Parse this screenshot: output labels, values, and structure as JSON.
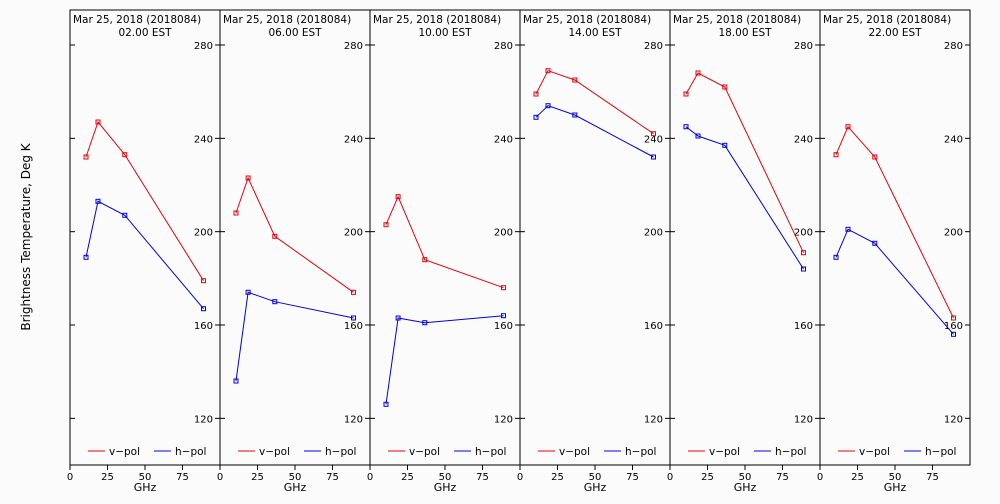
{
  "ylabel": "Brightness Temperature, Deg K",
  "legend": {
    "v_label": "v−pol",
    "h_label": "h−pol"
  },
  "colors": {
    "v": "#e8000b",
    "h": "#0000e0",
    "axis": "#000000",
    "background": "#fbfbfb"
  },
  "chart_data": [
    {
      "type": "line",
      "title": "Mar 25, 2018 (2018084)",
      "subtitle": "02.00 EST",
      "xlabel": "GHz",
      "xlim": [
        0,
        100
      ],
      "ylim": [
        100,
        295
      ],
      "xticks": [
        0,
        25,
        50,
        75
      ],
      "yticks": [
        120,
        160,
        200,
        240,
        280
      ],
      "x": [
        10.65,
        18.7,
        36.5,
        89.0
      ],
      "series": [
        {
          "name": "v−pol",
          "values": [
            232,
            247,
            233,
            179
          ]
        },
        {
          "name": "h−pol",
          "values": [
            189,
            213,
            207,
            167
          ]
        }
      ]
    },
    {
      "type": "line",
      "title": "Mar 25, 2018 (2018084)",
      "subtitle": "06.00 EST",
      "xlabel": "GHz",
      "xlim": [
        0,
        100
      ],
      "ylim": [
        100,
        295
      ],
      "xticks": [
        0,
        25,
        50,
        75
      ],
      "yticks": [
        120,
        160,
        200,
        240,
        280
      ],
      "x": [
        10.65,
        18.7,
        36.5,
        89.0
      ],
      "series": [
        {
          "name": "v−pol",
          "values": [
            208,
            223,
            198,
            174
          ]
        },
        {
          "name": "h−pol",
          "values": [
            136,
            174,
            170,
            163
          ]
        }
      ]
    },
    {
      "type": "line",
      "title": "Mar 25, 2018 (2018084)",
      "subtitle": "10.00 EST",
      "xlabel": "GHz",
      "xlim": [
        0,
        100
      ],
      "ylim": [
        100,
        295
      ],
      "xticks": [
        0,
        25,
        50,
        75
      ],
      "yticks": [
        120,
        160,
        200,
        240,
        280
      ],
      "x": [
        10.65,
        18.7,
        36.5,
        89.0
      ],
      "series": [
        {
          "name": "v−pol",
          "values": [
            203,
            215,
            188,
            176
          ]
        },
        {
          "name": "h−pol",
          "values": [
            126,
            163,
            161,
            164
          ]
        }
      ]
    },
    {
      "type": "line",
      "title": "Mar 25, 2018 (2018084)",
      "subtitle": "14.00 EST",
      "xlabel": "GHz",
      "xlim": [
        0,
        100
      ],
      "ylim": [
        100,
        295
      ],
      "xticks": [
        0,
        25,
        50,
        75
      ],
      "yticks": [
        120,
        160,
        200,
        240,
        280
      ],
      "x": [
        10.65,
        18.7,
        36.5,
        89.0
      ],
      "series": [
        {
          "name": "v−pol",
          "values": [
            259,
            269,
            265,
            242
          ]
        },
        {
          "name": "h−pol",
          "values": [
            249,
            254,
            250,
            232
          ]
        }
      ]
    },
    {
      "type": "line",
      "title": "Mar 25, 2018 (2018084)",
      "subtitle": "18.00 EST",
      "xlabel": "GHz",
      "xlim": [
        0,
        100
      ],
      "ylim": [
        100,
        295
      ],
      "xticks": [
        0,
        25,
        50,
        75
      ],
      "yticks": [
        120,
        160,
        200,
        240,
        280
      ],
      "x": [
        10.65,
        18.7,
        36.5,
        89.0
      ],
      "series": [
        {
          "name": "v−pol",
          "values": [
            259,
            268,
            262,
            191
          ]
        },
        {
          "name": "h−pol",
          "values": [
            245,
            241,
            237,
            184
          ]
        }
      ]
    },
    {
      "type": "line",
      "title": "Mar 25, 2018 (2018084)",
      "subtitle": "22.00 EST",
      "xlabel": "GHz",
      "xlim": [
        0,
        100
      ],
      "ylim": [
        100,
        295
      ],
      "xticks": [
        0,
        25,
        50,
        75
      ],
      "yticks": [
        120,
        160,
        200,
        240,
        280
      ],
      "x": [
        10.65,
        18.7,
        36.5,
        89.0
      ],
      "series": [
        {
          "name": "v−pol",
          "values": [
            233,
            245,
            232,
            163
          ]
        },
        {
          "name": "h−pol",
          "values": [
            189,
            201,
            195,
            156
          ]
        }
      ]
    }
  ]
}
